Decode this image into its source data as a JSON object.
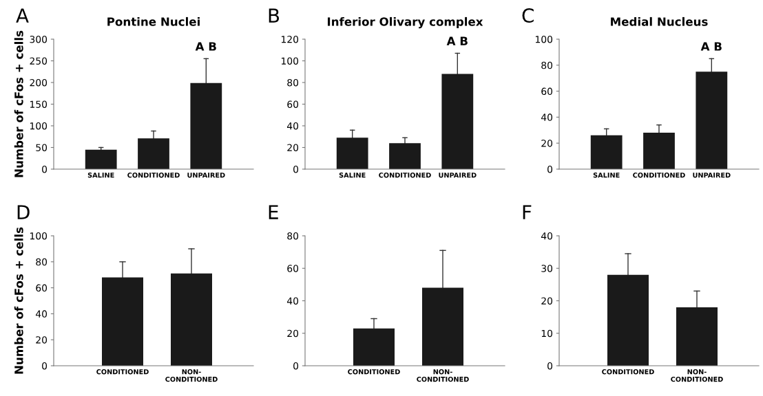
{
  "chart_data": [
    {
      "type": "bar",
      "title": "Pontine Nuclei",
      "ylabel": "Number of cFos + cells",
      "categories": [
        "SALINE",
        "CONDITIONED",
        "UNPAIRED"
      ],
      "values": [
        45,
        71,
        199
      ],
      "errors": [
        [
          45,
          50
        ],
        [
          71,
          88
        ],
        [
          199,
          255
        ]
      ],
      "color": "#1a1a1a",
      "ylim": [
        0,
        300
      ],
      "yticks": [
        0,
        50,
        100,
        150,
        200,
        250,
        300
      ],
      "annotations": [
        "A",
        "A B"
      ]
    },
    {
      "type": "bar",
      "title": "Inferior Olivary complex",
      "categories": [
        "SALINE",
        "CONDITIONED",
        "UNPAIRED"
      ],
      "values": [
        29,
        24,
        88
      ],
      "errors": [
        [
          29,
          36
        ],
        [
          24,
          29
        ],
        [
          88,
          107
        ]
      ],
      "color": "#1a1a1a",
      "ylim": [
        0,
        120
      ],
      "yticks": [
        0,
        20,
        40,
        60,
        80,
        100,
        120
      ],
      "annotations": [
        "B",
        "A B"
      ]
    },
    {
      "type": "bar",
      "title": "Medial Nucleus",
      "categories": [
        "SALINE",
        "CONDITIONED",
        "UNPAIRED"
      ],
      "values": [
        26,
        28,
        75
      ],
      "errors": [
        [
          26,
          31
        ],
        [
          28,
          34
        ],
        [
          75,
          85
        ]
      ],
      "color": "#1a1a1a",
      "ylim": [
        0,
        100
      ],
      "yticks": [
        0,
        20,
        40,
        60,
        80,
        100
      ],
      "annotations": [
        "C",
        "A B"
      ]
    },
    {
      "type": "bar",
      "ylabel": "Number of cFos + cells",
      "categories": [
        "CONDITIONED",
        "NON-\nCONDITIONED"
      ],
      "values": [
        68,
        71
      ],
      "errors": [
        [
          68,
          80
        ],
        [
          71,
          90
        ]
      ],
      "color": "#1a1a1a",
      "ylim": [
        0,
        100
      ],
      "yticks": [
        0,
        20,
        40,
        60,
        80,
        100
      ],
      "annotations": [
        "D"
      ]
    },
    {
      "type": "bar",
      "categories": [
        "CONDITIONED",
        "NON-\nCONDITIONED"
      ],
      "values": [
        23,
        48
      ],
      "errors": [
        [
          23,
          29
        ],
        [
          48,
          71
        ]
      ],
      "color": "#1a1a1a",
      "ylim": [
        0,
        80
      ],
      "yticks": [
        0,
        20,
        40,
        60,
        80
      ],
      "annotations": [
        "E"
      ]
    },
    {
      "type": "bar",
      "categories": [
        "CONDITIONED",
        "NON-\nCONDITIONED"
      ],
      "values": [
        28,
        18
      ],
      "errors": [
        [
          28,
          34.5
        ],
        [
          18,
          23
        ]
      ],
      "color": "#1a1a1a",
      "ylim": [
        0,
        40
      ],
      "yticks": [
        0,
        10,
        20,
        30,
        40
      ],
      "annotations": [
        "F"
      ]
    }
  ]
}
